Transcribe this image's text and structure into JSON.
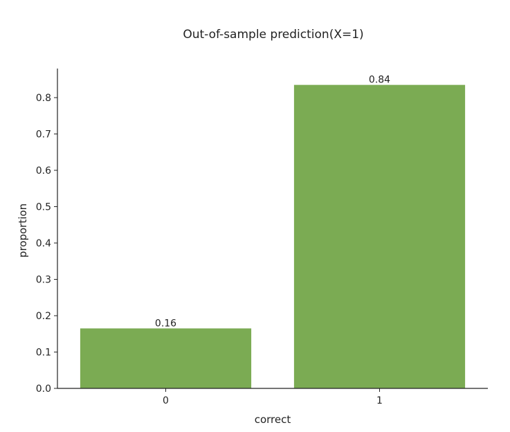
{
  "chart_data": {
    "type": "bar",
    "title": "Out-of-sample prediction(X=1)",
    "xlabel": "correct",
    "ylabel": "proportion",
    "categories": [
      "0",
      "1"
    ],
    "values": [
      0.165,
      0.835
    ],
    "data_labels": [
      "0.16",
      "0.84"
    ],
    "ylim": [
      0,
      0.88
    ],
    "yticks": [
      0.0,
      0.1,
      0.2,
      0.3,
      0.4,
      0.5,
      0.6,
      0.7,
      0.8
    ],
    "ytick_labels": [
      "0.0",
      "0.1",
      "0.2",
      "0.3",
      "0.4",
      "0.5",
      "0.6",
      "0.7",
      "0.8"
    ],
    "bar_color": "#7bab53",
    "grid": false,
    "legend": "none"
  }
}
